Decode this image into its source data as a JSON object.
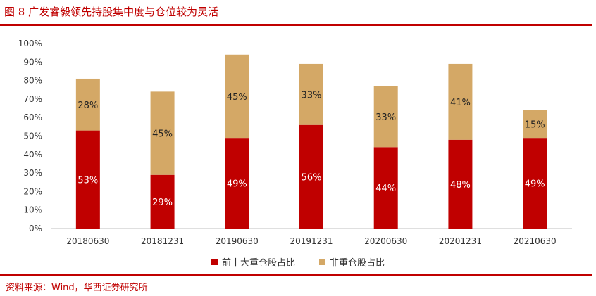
{
  "header": {
    "title": "图 8  广发睿毅领先持股集中度与仓位较为灵活"
  },
  "footer": {
    "source": "资料来源：Wind，华西证券研究所"
  },
  "colors": {
    "series1": "#c00000",
    "series2": "#d4a866",
    "accent": "#c00000"
  },
  "chart_data": {
    "type": "bar",
    "stacked": true,
    "categories": [
      "20180630",
      "20181231",
      "20190630",
      "20191231",
      "20200630",
      "20201231",
      "20210630"
    ],
    "series": [
      {
        "name": "前十大重仓股占比",
        "values": [
          53,
          29,
          49,
          56,
          44,
          48,
          49
        ],
        "labels": [
          "53%",
          "29%",
          "49%",
          "56%",
          "44%",
          "48%",
          "49%"
        ]
      },
      {
        "name": "非重仓股占比",
        "values": [
          28,
          45,
          45,
          33,
          33,
          41,
          15
        ],
        "labels": [
          "28%",
          "45%",
          "45%",
          "33%",
          "33%",
          "41%",
          "15%"
        ]
      }
    ],
    "yticks": [
      "0%",
      "10%",
      "20%",
      "30%",
      "40%",
      "50%",
      "60%",
      "70%",
      "80%",
      "90%",
      "100%"
    ],
    "ylim": [
      0,
      100
    ],
    "grid": false,
    "legend_position": "bottom"
  }
}
